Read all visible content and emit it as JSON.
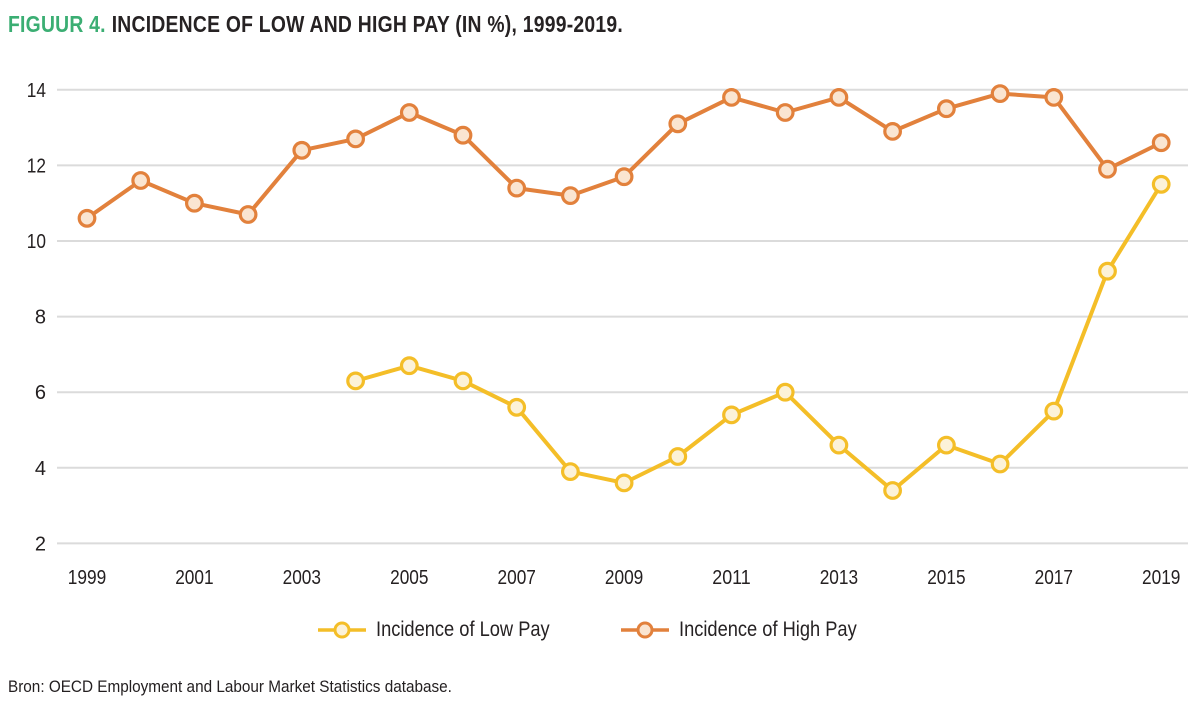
{
  "header": {
    "figure_label": "FIGUUR 4.",
    "title": "INCIDENCE OF LOW AND HIGH PAY (IN %), 1999-2019."
  },
  "footer": {
    "source": "Bron: OECD Employment and Labour Market Statistics database."
  },
  "colors": {
    "figure_label_green": "#3BAE73",
    "text": "#242021",
    "grid": "#DBDBDB",
    "low_pay_line": "#F4BE28",
    "low_pay_marker_fill": "#FCF2D8",
    "high_pay_line": "#E2813C",
    "high_pay_marker_fill": "#FAE5D1"
  },
  "chart_data": {
    "type": "line",
    "title": "INCIDENCE OF LOW AND HIGH PAY (IN %), 1999-2019.",
    "xlabel": "",
    "ylabel": "",
    "xlim": [
      1999,
      2019
    ],
    "ylim": [
      2,
      14
    ],
    "x_ticks": [
      1999,
      2001,
      2003,
      2005,
      2007,
      2009,
      2011,
      2013,
      2015,
      2017,
      2019
    ],
    "y_ticks": [
      2,
      4,
      6,
      8,
      10,
      12,
      14
    ],
    "grid": "horizontal",
    "legend_position": "bottom",
    "series": [
      {
        "name": "Incidence of Low Pay",
        "color": "#F4BE28",
        "marker_fill": "#FCF2D8",
        "x": [
          2004,
          2005,
          2006,
          2007,
          2008,
          2009,
          2010,
          2011,
          2012,
          2013,
          2014,
          2015,
          2016,
          2017,
          2018,
          2019
        ],
        "values": [
          6.3,
          6.7,
          6.3,
          5.6,
          3.9,
          3.6,
          4.3,
          5.4,
          6.0,
          4.6,
          3.4,
          4.6,
          4.1,
          5.5,
          9.2,
          11.5
        ]
      },
      {
        "name": "Incidence of High Pay",
        "color": "#E2813C",
        "marker_fill": "#FAE5D1",
        "x": [
          1999,
          2000,
          2001,
          2002,
          2003,
          2004,
          2005,
          2006,
          2007,
          2008,
          2009,
          2010,
          2011,
          2012,
          2013,
          2014,
          2015,
          2016,
          2017,
          2018,
          2019
        ],
        "values": [
          10.6,
          11.6,
          11.0,
          10.7,
          12.4,
          12.7,
          13.4,
          12.8,
          11.4,
          11.2,
          11.7,
          13.1,
          13.8,
          13.4,
          13.8,
          12.9,
          13.5,
          13.9,
          13.8,
          11.9,
          12.6
        ]
      }
    ]
  }
}
